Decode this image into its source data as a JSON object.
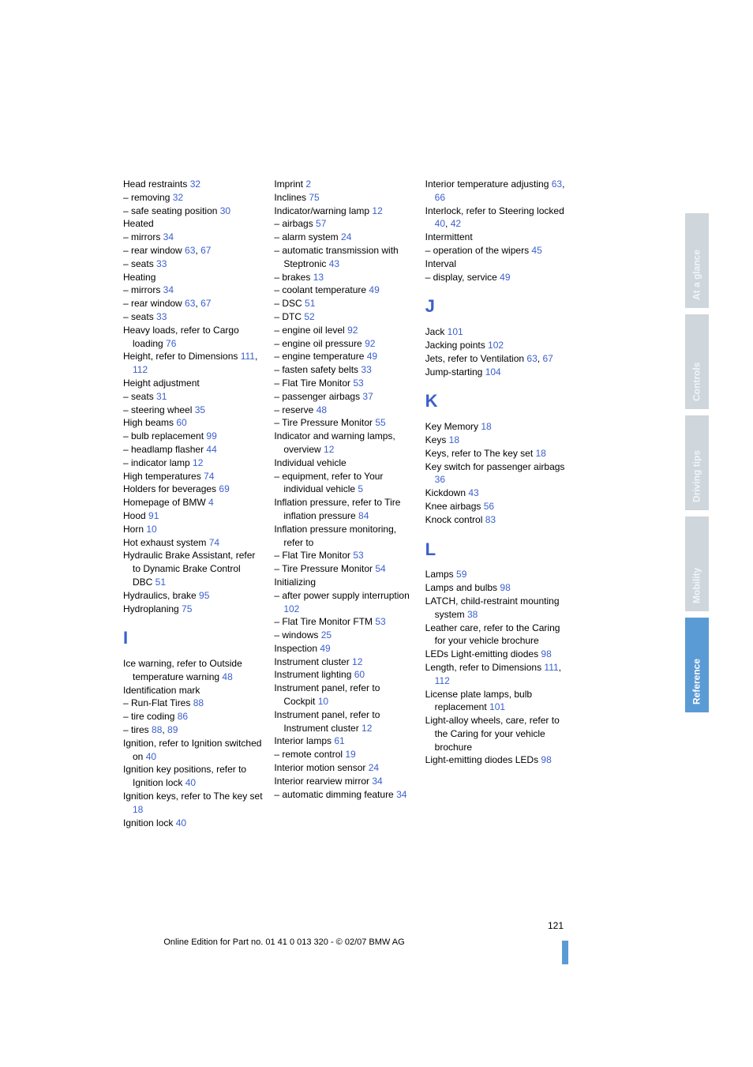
{
  "columns": [
    [
      {
        "t": "Head restraints ",
        "r": "32"
      },
      {
        "t": "– removing ",
        "r": "32"
      },
      {
        "t": "– safe seating position ",
        "r": "30"
      },
      {
        "t": "Heated"
      },
      {
        "t": "– mirrors ",
        "r": "34"
      },
      {
        "t": "– rear window ",
        "r": "63",
        "t2": ", ",
        "r2": "67"
      },
      {
        "t": "– seats ",
        "r": "33"
      },
      {
        "t": "Heating"
      },
      {
        "t": "– mirrors ",
        "r": "34"
      },
      {
        "t": "– rear window ",
        "r": "63",
        "t2": ", ",
        "r2": "67"
      },
      {
        "t": "– seats ",
        "r": "33"
      },
      {
        "t": "Heavy loads, refer to Cargo loading ",
        "r": "76",
        "indent": true
      },
      {
        "t": "Height, refer to Dimensions ",
        "r": "111",
        "t2": ", ",
        "r2": "112",
        "indent": true
      },
      {
        "t": "Height adjustment"
      },
      {
        "t": "– seats ",
        "r": "31"
      },
      {
        "t": "– steering wheel ",
        "r": "35"
      },
      {
        "t": "High beams ",
        "r": "60"
      },
      {
        "t": "– bulb replacement ",
        "r": "99"
      },
      {
        "t": "– headlamp flasher ",
        "r": "44"
      },
      {
        "t": "– indicator lamp ",
        "r": "12"
      },
      {
        "t": "High temperatures ",
        "r": "74"
      },
      {
        "t": "Holders for beverages ",
        "r": "69"
      },
      {
        "t": "Homepage of BMW ",
        "r": "4"
      },
      {
        "t": "Hood ",
        "r": "91"
      },
      {
        "t": "Horn ",
        "r": "10"
      },
      {
        "t": "Hot exhaust system ",
        "r": "74"
      },
      {
        "t": "Hydraulic Brake Assistant, refer to Dynamic Brake Control DBC ",
        "r": "51",
        "indent": true
      },
      {
        "t": "Hydraulics, brake ",
        "r": "95"
      },
      {
        "t": "Hydroplaning ",
        "r": "75"
      },
      {
        "letter": "I"
      },
      {
        "t": "Ice warning, refer to Outside temperature warning ",
        "r": "48",
        "indent": true
      },
      {
        "t": "Identification mark"
      },
      {
        "t": "– Run-Flat Tires ",
        "r": "88"
      },
      {
        "t": "– tire coding ",
        "r": "86"
      },
      {
        "t": "– tires ",
        "r": "88",
        "t2": ", ",
        "r2": "89"
      },
      {
        "t": "Ignition, refer to Ignition switched on ",
        "r": "40",
        "indent": true
      },
      {
        "t": "Ignition key positions, refer to Ignition lock ",
        "r": "40",
        "indent": true
      },
      {
        "t": "Ignition keys, refer to The key set ",
        "r": "18",
        "indent": true
      },
      {
        "t": "Ignition lock ",
        "r": "40"
      }
    ],
    [
      {
        "t": "Imprint ",
        "r": "2"
      },
      {
        "t": "Inclines ",
        "r": "75"
      },
      {
        "t": "Indicator/warning lamp ",
        "r": "12"
      },
      {
        "t": "– airbags ",
        "r": "57"
      },
      {
        "t": "– alarm system ",
        "r": "24"
      },
      {
        "t": "– automatic transmission with Steptronic ",
        "r": "43",
        "indent": true
      },
      {
        "t": "– brakes ",
        "r": "13"
      },
      {
        "t": "– coolant temperature ",
        "r": "49"
      },
      {
        "t": "– DSC ",
        "r": "51"
      },
      {
        "t": "– DTC ",
        "r": "52"
      },
      {
        "t": "– engine oil level ",
        "r": "92"
      },
      {
        "t": "– engine oil pressure ",
        "r": "92"
      },
      {
        "t": "– engine temperature ",
        "r": "49"
      },
      {
        "t": "– fasten safety belts ",
        "r": "33"
      },
      {
        "t": "– Flat Tire Monitor ",
        "r": "53"
      },
      {
        "t": "– passenger airbags ",
        "r": "37"
      },
      {
        "t": "– reserve ",
        "r": "48"
      },
      {
        "t": "– Tire Pressure Monitor ",
        "r": "55"
      },
      {
        "t": "Indicator and warning lamps, overview ",
        "r": "12",
        "indent": true
      },
      {
        "t": "Individual vehicle"
      },
      {
        "t": "– equipment, refer to Your individual vehicle ",
        "r": "5",
        "indent": true
      },
      {
        "t": "Inflation pressure, refer to Tire inflation pressure ",
        "r": "84",
        "indent": true
      },
      {
        "t": "Inflation pressure monitoring, refer to",
        "indent": true
      },
      {
        "t": "– Flat Tire Monitor ",
        "r": "53"
      },
      {
        "t": "– Tire Pressure Monitor ",
        "r": "54"
      },
      {
        "t": "Initializing"
      },
      {
        "t": "– after power supply interruption ",
        "r": "102",
        "indent": true
      },
      {
        "t": "– Flat Tire Monitor FTM ",
        "r": "53"
      },
      {
        "t": "– windows ",
        "r": "25"
      },
      {
        "t": "Inspection ",
        "r": "49"
      },
      {
        "t": "Instrument cluster ",
        "r": "12"
      },
      {
        "t": "Instrument lighting ",
        "r": "60"
      },
      {
        "t": "Instrument panel, refer to Cockpit ",
        "r": "10",
        "indent": true
      },
      {
        "t": "Instrument panel, refer to Instrument cluster ",
        "r": "12",
        "indent": true
      },
      {
        "t": "Interior lamps ",
        "r": "61"
      },
      {
        "t": "– remote control ",
        "r": "19"
      },
      {
        "t": "Interior motion sensor ",
        "r": "24"
      },
      {
        "t": "Interior rearview mirror ",
        "r": "34"
      },
      {
        "t": "– automatic dimming feature ",
        "r": "34",
        "indent": true
      }
    ],
    [
      {
        "t": "Interior temperature adjusting ",
        "r": "63",
        "t2": ", ",
        "r2": "66",
        "indent": true
      },
      {
        "t": "Interlock, refer to Steering locked ",
        "r": "40",
        "t2": ", ",
        "r2": "42",
        "indent": true
      },
      {
        "t": "Intermittent"
      },
      {
        "t": "– operation of the wipers ",
        "r": "45"
      },
      {
        "t": "Interval"
      },
      {
        "t": "– display, service ",
        "r": "49"
      },
      {
        "letter": "J"
      },
      {
        "t": "Jack ",
        "r": "101"
      },
      {
        "t": "Jacking points ",
        "r": "102"
      },
      {
        "t": "Jets, refer to Ventilation ",
        "r": "63",
        "t2": ", ",
        "r2": "67",
        "indent": true
      },
      {
        "t": "Jump-starting ",
        "r": "104"
      },
      {
        "letter": "K"
      },
      {
        "t": "Key Memory ",
        "r": "18"
      },
      {
        "t": "Keys ",
        "r": "18"
      },
      {
        "t": "Keys, refer to The key set ",
        "r": "18"
      },
      {
        "t": "Key switch for passenger airbags ",
        "r": "36",
        "indent": true
      },
      {
        "t": "Kickdown ",
        "r": "43"
      },
      {
        "t": "Knee airbags ",
        "r": "56"
      },
      {
        "t": "Knock control ",
        "r": "83"
      },
      {
        "letter": "L"
      },
      {
        "t": "Lamps ",
        "r": "59"
      },
      {
        "t": "Lamps and bulbs ",
        "r": "98"
      },
      {
        "t": "LATCH, child-restraint mounting system ",
        "r": "38",
        "indent": true
      },
      {
        "t": "Leather care, refer to the Caring for your vehicle brochure",
        "indent": true
      },
      {
        "t": "LEDs Light-emitting diodes ",
        "r": "98",
        "indent": true
      },
      {
        "t": "Length, refer to Dimensions ",
        "r": "111",
        "t2": ", ",
        "r2": "112",
        "indent": true
      },
      {
        "t": "License plate lamps, bulb replacement ",
        "r": "101",
        "indent": true
      },
      {
        "t": "Light-alloy wheels, care, refer to the Caring for your vehicle brochure",
        "indent": true
      },
      {
        "t": "Light-emitting diodes LEDs ",
        "r": "98",
        "indent": true
      }
    ]
  ],
  "tabs": [
    "At a glance",
    "Controls",
    "Driving tips",
    "Mobility",
    "Reference"
  ],
  "activeTab": 4,
  "pageNumber": "121",
  "copyright": "Online Edition for Part no. 01 41 0 013 320 - © 02/07 BMW AG"
}
